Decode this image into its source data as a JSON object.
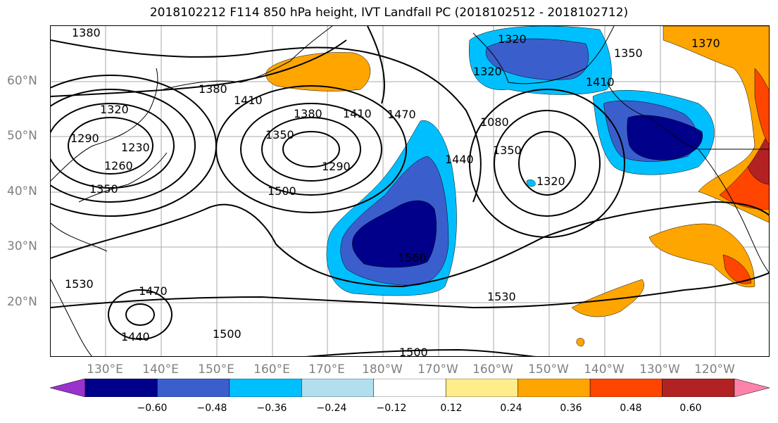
{
  "title": "2018102212 F114 850 hPa height, IVT Landfall PC (2018102512 - 2018102712)",
  "lat_labels": [
    "60°N",
    "50°N",
    "40°N",
    "30°N",
    "20°N"
  ],
  "lon_labels": [
    "130°E",
    "140°E",
    "150°E",
    "160°E",
    "170°E",
    "180°W",
    "170°W",
    "160°W",
    "150°W",
    "140°W",
    "130°W",
    "120°W"
  ],
  "contour_labels": [
    "1380",
    "1320",
    "1290",
    "1230",
    "1260",
    "1350",
    "1380",
    "1410",
    "1380",
    "1410",
    "1470",
    "1350",
    "1290",
    "1500",
    "1560",
    "1440",
    "1350",
    "1320",
    "1320",
    "1350",
    "1410",
    "1530",
    "1470",
    "1440",
    "1500",
    "1530",
    "1500",
    "1080",
    "1320",
    "1370"
  ],
  "colorbar": {
    "ticks": [
      "−0.60",
      "−0.48",
      "−0.36",
      "−0.24",
      "−0.12",
      "0.12",
      "0.24",
      "0.36",
      "0.48",
      "0.60"
    ],
    "colors": [
      "#9a32cd",
      "#00008b",
      "#3a5fcd",
      "#00bfff",
      "#b2dfee",
      "#ffffff",
      "#ffec8b",
      "#ffa500",
      "#ff4500",
      "#b22222",
      "#ff82ab"
    ]
  }
}
